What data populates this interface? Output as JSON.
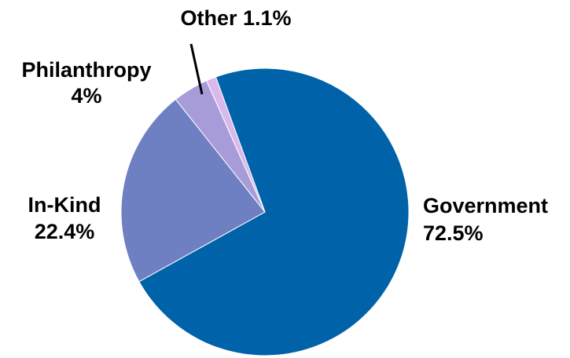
{
  "chart_data": {
    "type": "pie",
    "start_angle_deg": -20,
    "direction": "clockwise",
    "slices": [
      {
        "name": "Government",
        "value": 72.5,
        "label": "Government",
        "pct_label": "72.5%",
        "color": "#0062a8"
      },
      {
        "name": "In-Kind",
        "value": 22.4,
        "label": "In-Kind",
        "pct_label": "22.4%",
        "color": "#6f80c2"
      },
      {
        "name": "Philanthropy",
        "value": 4.0,
        "label": "Philanthropy",
        "pct_label": "4%",
        "color": "#a89cd8"
      },
      {
        "name": "Other",
        "value": 1.1,
        "label": "Other 1.1%",
        "pct_label": "",
        "color": "#d9b8ec"
      }
    ]
  }
}
